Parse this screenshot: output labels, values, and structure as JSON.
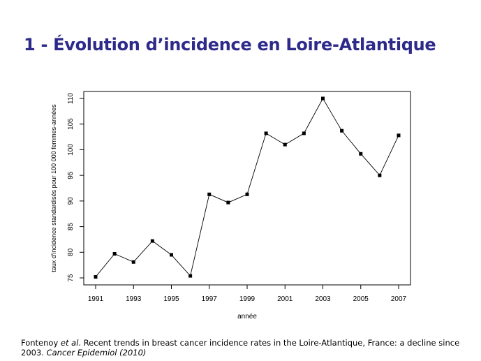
{
  "slide": {
    "title": "1 - Évolution d’incidence en Loire-Atlantique"
  },
  "citation": {
    "authors_pre": "Fontenoy ",
    "authors_etal": "et al",
    "text": ". Recent trends in breast cancer incidence rates in the Loire-Atlantique, France: a decline since 2003. ",
    "journal": "Cancer Epidemiol (2010)"
  },
  "chart_data": {
    "type": "line",
    "marker": "square",
    "color": "#000000",
    "xlabel": "année",
    "ylabel": "taux d'incidence standardisés pour 100 000 femmes-années",
    "xlim": [
      1991,
      2007
    ],
    "ylim": [
      75,
      110
    ],
    "xticks": [
      1991,
      1993,
      1995,
      1997,
      1999,
      2001,
      2003,
      2005,
      2007
    ],
    "yticks": [
      75,
      80,
      85,
      90,
      95,
      100,
      105,
      110
    ],
    "grid": false,
    "x": [
      1991,
      1992,
      1993,
      1994,
      1995,
      1996,
      1997,
      1998,
      1999,
      2000,
      2001,
      2002,
      2003,
      2004,
      2005,
      2006,
      2007
    ],
    "values": [
      75.2,
      79.7,
      78.1,
      82.2,
      79.5,
      75.4,
      91.3,
      89.7,
      91.3,
      103.2,
      101.0,
      103.2,
      110.0,
      103.7,
      99.2,
      95.0,
      102.8
    ]
  }
}
